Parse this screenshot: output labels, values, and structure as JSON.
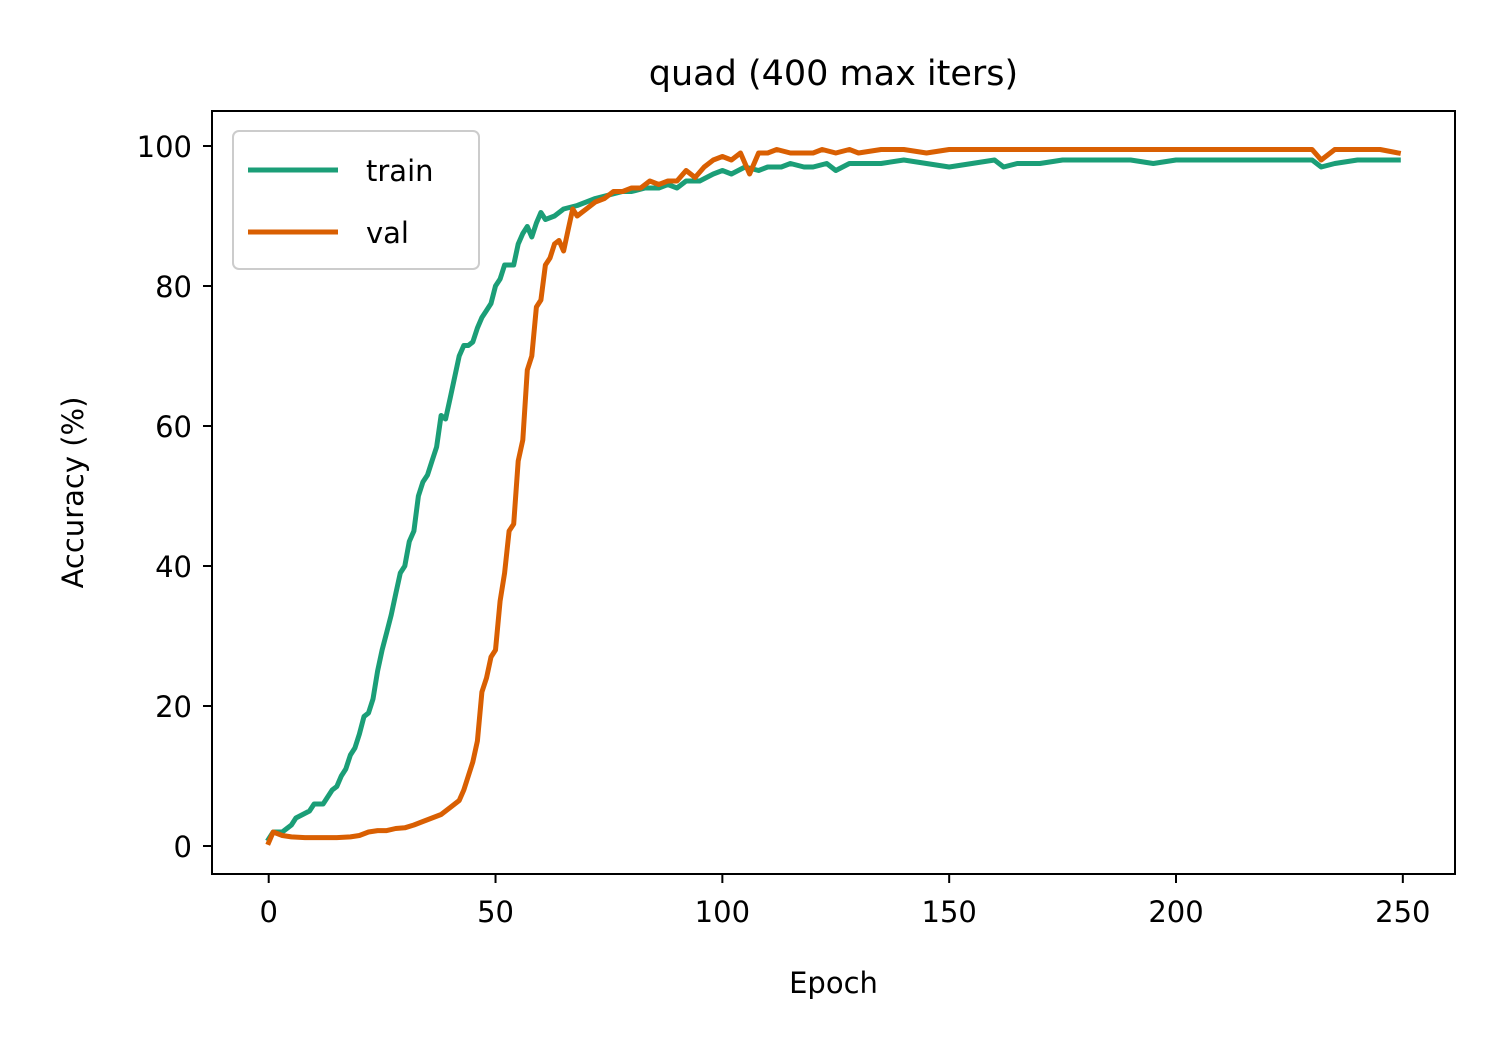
{
  "chart_data": {
    "type": "line",
    "title": "quad (400 max iters)",
    "xlabel": "Epoch",
    "ylabel": "Accuracy (%)",
    "xlim": [
      -12.5,
      261.5
    ],
    "ylim": [
      -4,
      105
    ],
    "xticks": [
      0,
      50,
      100,
      150,
      200,
      250
    ],
    "yticks": [
      0,
      20,
      40,
      60,
      80,
      100
    ],
    "grid": false,
    "legend_position": "upper-left",
    "series": [
      {
        "name": "train",
        "color": "#1b9e77",
        "points": [
          [
            0,
            1
          ],
          [
            1,
            2
          ],
          [
            3,
            2
          ],
          [
            5,
            3
          ],
          [
            6,
            4
          ],
          [
            9,
            5
          ],
          [
            10,
            6
          ],
          [
            12,
            6
          ],
          [
            14,
            8
          ],
          [
            15,
            8.5
          ],
          [
            16,
            10
          ],
          [
            17,
            11
          ],
          [
            18,
            13
          ],
          [
            19,
            14
          ],
          [
            20,
            16
          ],
          [
            21,
            18.5
          ],
          [
            22,
            19
          ],
          [
            23,
            21
          ],
          [
            24,
            25
          ],
          [
            25,
            28
          ],
          [
            26,
            30.5
          ],
          [
            27,
            33
          ],
          [
            28,
            36
          ],
          [
            29,
            39
          ],
          [
            30,
            40
          ],
          [
            31,
            43.5
          ],
          [
            32,
            45
          ],
          [
            33,
            50
          ],
          [
            34,
            52
          ],
          [
            35,
            53
          ],
          [
            36,
            55
          ],
          [
            37,
            57
          ],
          [
            38,
            61.5
          ],
          [
            39,
            61
          ],
          [
            40,
            64
          ],
          [
            41,
            67
          ],
          [
            42,
            70
          ],
          [
            43,
            71.5
          ],
          [
            44,
            71.5
          ],
          [
            45,
            72
          ],
          [
            46,
            74
          ],
          [
            47,
            75.5
          ],
          [
            48,
            76.5
          ],
          [
            49,
            77.5
          ],
          [
            50,
            80
          ],
          [
            51,
            81
          ],
          [
            52,
            83
          ],
          [
            53,
            83
          ],
          [
            54,
            83
          ],
          [
            55,
            86
          ],
          [
            56,
            87.5
          ],
          [
            57,
            88.5
          ],
          [
            58,
            87
          ],
          [
            59,
            89
          ],
          [
            60,
            90.5
          ],
          [
            61,
            89.5
          ],
          [
            63,
            90
          ],
          [
            65,
            91
          ],
          [
            68,
            91.5
          ],
          [
            70,
            92
          ],
          [
            72,
            92.5
          ],
          [
            75,
            93
          ],
          [
            78,
            93.5
          ],
          [
            80,
            93.5
          ],
          [
            83,
            94
          ],
          [
            86,
            94
          ],
          [
            88,
            94.5
          ],
          [
            90,
            94
          ],
          [
            92,
            95
          ],
          [
            95,
            95
          ],
          [
            98,
            96
          ],
          [
            100,
            96.5
          ],
          [
            102,
            96
          ],
          [
            105,
            97
          ],
          [
            108,
            96.5
          ],
          [
            110,
            97
          ],
          [
            113,
            97
          ],
          [
            115,
            97.5
          ],
          [
            118,
            97
          ],
          [
            120,
            97
          ],
          [
            123,
            97.5
          ],
          [
            125,
            96.5
          ],
          [
            128,
            97.5
          ],
          [
            130,
            97.5
          ],
          [
            135,
            97.5
          ],
          [
            140,
            98
          ],
          [
            145,
            97.5
          ],
          [
            150,
            97
          ],
          [
            155,
            97.5
          ],
          [
            160,
            98
          ],
          [
            162,
            97
          ],
          [
            165,
            97.5
          ],
          [
            170,
            97.5
          ],
          [
            175,
            98
          ],
          [
            180,
            98
          ],
          [
            185,
            98
          ],
          [
            190,
            98
          ],
          [
            195,
            97.5
          ],
          [
            200,
            98
          ],
          [
            205,
            98
          ],
          [
            210,
            98
          ],
          [
            215,
            98
          ],
          [
            220,
            98
          ],
          [
            225,
            98
          ],
          [
            230,
            98
          ],
          [
            232,
            97
          ],
          [
            235,
            97.5
          ],
          [
            240,
            98
          ],
          [
            245,
            98
          ],
          [
            249,
            98
          ]
        ]
      },
      {
        "name": "val",
        "color": "#d95f02",
        "points": [
          [
            0,
            0.5
          ],
          [
            1,
            2
          ],
          [
            3,
            1.5
          ],
          [
            5,
            1.3
          ],
          [
            8,
            1.2
          ],
          [
            10,
            1.2
          ],
          [
            12,
            1.2
          ],
          [
            15,
            1.2
          ],
          [
            18,
            1.3
          ],
          [
            20,
            1.5
          ],
          [
            22,
            2
          ],
          [
            24,
            2.2
          ],
          [
            26,
            2.2
          ],
          [
            28,
            2.5
          ],
          [
            30,
            2.6
          ],
          [
            32,
            3
          ],
          [
            34,
            3.5
          ],
          [
            36,
            4
          ],
          [
            38,
            4.5
          ],
          [
            40,
            5.5
          ],
          [
            42,
            6.5
          ],
          [
            43,
            8
          ],
          [
            44,
            10
          ],
          [
            45,
            12
          ],
          [
            46,
            15
          ],
          [
            47,
            22
          ],
          [
            48,
            24
          ],
          [
            49,
            27
          ],
          [
            50,
            28
          ],
          [
            51,
            35
          ],
          [
            52,
            39
          ],
          [
            53,
            45
          ],
          [
            54,
            46
          ],
          [
            55,
            55
          ],
          [
            56,
            58
          ],
          [
            57,
            68
          ],
          [
            58,
            70
          ],
          [
            59,
            77
          ],
          [
            60,
            78
          ],
          [
            61,
            83
          ],
          [
            62,
            84
          ],
          [
            63,
            86
          ],
          [
            64,
            86.5
          ],
          [
            65,
            85
          ],
          [
            66,
            88
          ],
          [
            67,
            91
          ],
          [
            68,
            90
          ],
          [
            69,
            90.5
          ],
          [
            70,
            91
          ],
          [
            72,
            92
          ],
          [
            74,
            92.5
          ],
          [
            76,
            93.5
          ],
          [
            78,
            93.5
          ],
          [
            80,
            94
          ],
          [
            82,
            94
          ],
          [
            84,
            95
          ],
          [
            86,
            94.5
          ],
          [
            88,
            95
          ],
          [
            90,
            95
          ],
          [
            92,
            96.5
          ],
          [
            94,
            95.5
          ],
          [
            96,
            97
          ],
          [
            98,
            98
          ],
          [
            100,
            98.5
          ],
          [
            102,
            98
          ],
          [
            104,
            99
          ],
          [
            106,
            96
          ],
          [
            108,
            99
          ],
          [
            110,
            99
          ],
          [
            112,
            99.5
          ],
          [
            115,
            99
          ],
          [
            118,
            99
          ],
          [
            120,
            99
          ],
          [
            122,
            99.5
          ],
          [
            125,
            99
          ],
          [
            128,
            99.5
          ],
          [
            130,
            99
          ],
          [
            135,
            99.5
          ],
          [
            140,
            99.5
          ],
          [
            145,
            99
          ],
          [
            150,
            99.5
          ],
          [
            155,
            99.5
          ],
          [
            160,
            99.5
          ],
          [
            165,
            99.5
          ],
          [
            170,
            99.5
          ],
          [
            175,
            99.5
          ],
          [
            180,
            99.5
          ],
          [
            185,
            99.5
          ],
          [
            190,
            99.5
          ],
          [
            195,
            99.5
          ],
          [
            200,
            99.5
          ],
          [
            205,
            99.5
          ],
          [
            210,
            99.5
          ],
          [
            215,
            99.5
          ],
          [
            220,
            99.5
          ],
          [
            225,
            99.5
          ],
          [
            230,
            99.5
          ],
          [
            232,
            98
          ],
          [
            235,
            99.5
          ],
          [
            240,
            99.5
          ],
          [
            245,
            99.5
          ],
          [
            249,
            99
          ]
        ]
      }
    ]
  }
}
